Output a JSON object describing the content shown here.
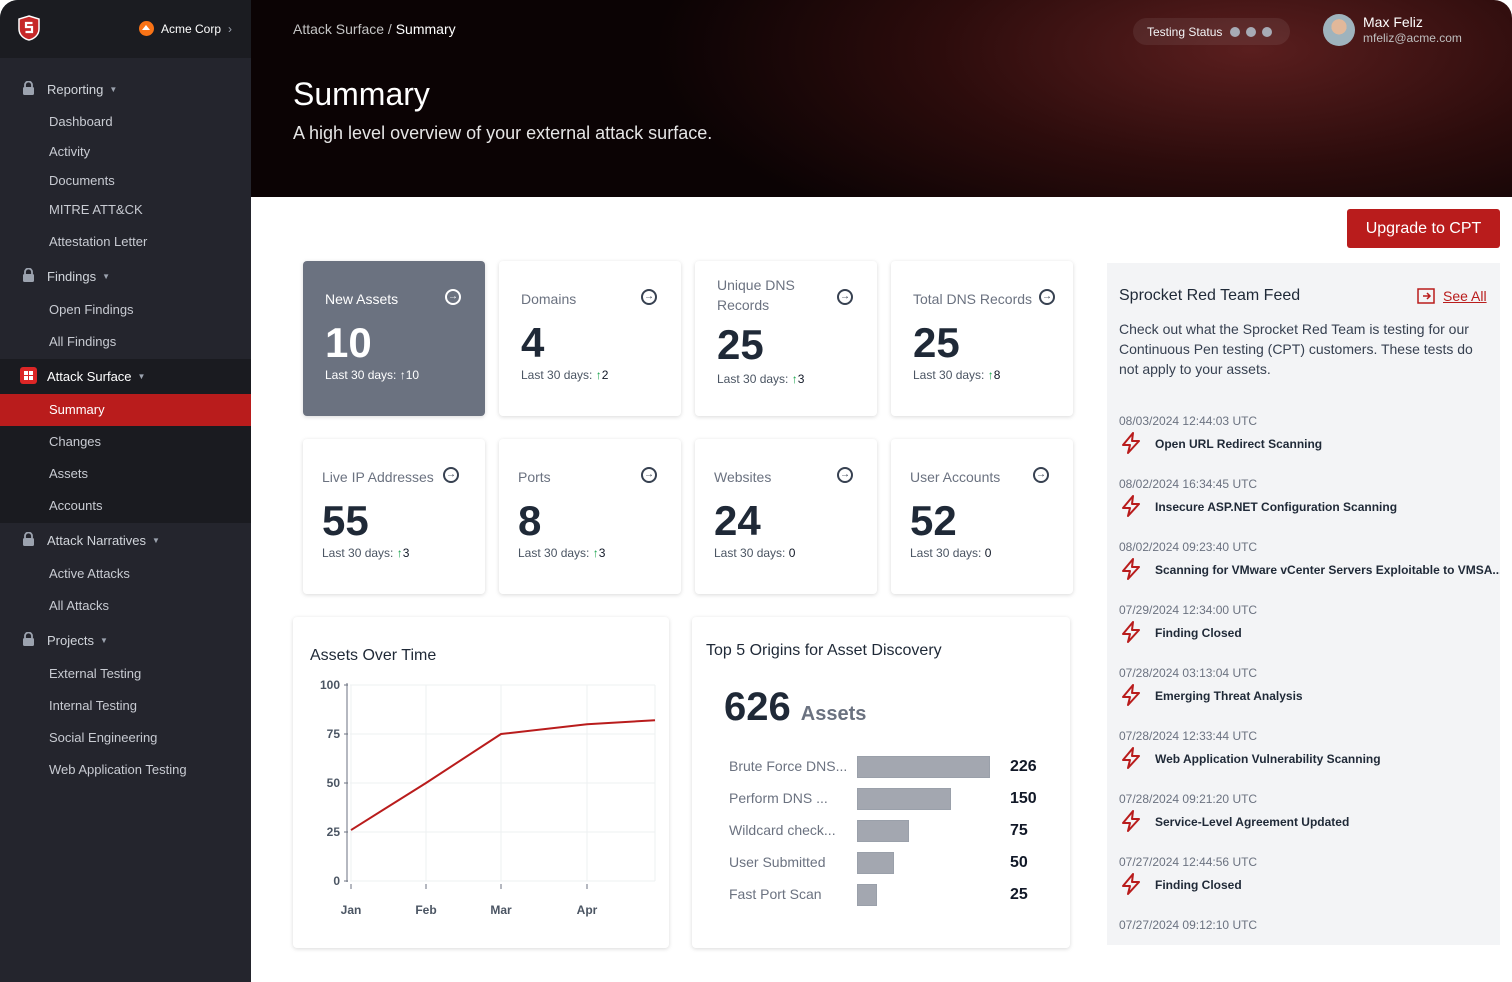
{
  "sidebar": {
    "org": "Acme Corp",
    "groups": [
      {
        "label": "Reporting",
        "items": [
          "Dashboard",
          "Activity",
          "Documents",
          "MITRE ATT&CK",
          "Attestation Letter"
        ]
      },
      {
        "label": "Findings",
        "items": [
          "Open Findings",
          "All Findings"
        ]
      },
      {
        "label": "Attack Surface",
        "items": [
          "Summary",
          "Changes",
          "Assets",
          "Accounts"
        ]
      },
      {
        "label": "Attack Narratives",
        "items": [
          "Active Attacks",
          "All Attacks"
        ]
      },
      {
        "label": "Projects",
        "items": [
          "External Testing",
          "Internal Testing",
          "Social  Engineering",
          "Web Application Testing"
        ]
      }
    ],
    "active_item": "Summary"
  },
  "header": {
    "breadcrumb_parent": "Attack Surface /",
    "breadcrumb_current": "Summary",
    "title": "Summary",
    "subtitle": "A high level overview of your external attack surface.",
    "testing_status": "Testing Status",
    "user_name": "Max Feliz",
    "user_email": "mfeliz@acme.com"
  },
  "upgrade_label": "Upgrade to CPT",
  "last30_label": "Last 30 days:",
  "cards": [
    {
      "title": "New Assets",
      "value": "10",
      "delta": "10",
      "dir": "up"
    },
    {
      "title": "Domains",
      "value": "4",
      "delta": "2",
      "dir": "up"
    },
    {
      "title": "Unique DNS Records",
      "value": "25",
      "delta": "3",
      "dir": "up"
    },
    {
      "title": "Total DNS Records",
      "value": "25",
      "delta": "8",
      "dir": "up"
    },
    {
      "title": "Live IP Addresses",
      "value": "55",
      "delta": "3",
      "dir": "up"
    },
    {
      "title": "Ports",
      "value": "8",
      "delta": "3",
      "dir": "up"
    },
    {
      "title": "Websites",
      "value": "24",
      "delta": "0",
      "dir": "none"
    },
    {
      "title": "User Accounts",
      "value": "52",
      "delta": "0",
      "dir": "none"
    }
  ],
  "chart_data": [
    {
      "type": "line",
      "title": "Assets Over Time",
      "x": [
        "Jan",
        "Feb",
        "Mar",
        "Apr",
        ""
      ],
      "values": [
        26,
        50,
        75,
        80,
        82
      ],
      "y_ticks": [
        "0",
        "25",
        "50",
        "75",
        "100"
      ],
      "ylim": [
        0,
        100
      ],
      "grid": true,
      "color": "#b91c1c"
    },
    {
      "type": "bar",
      "title": "Top 5 Origins for Asset Discovery",
      "total": "626",
      "total_unit": "Assets",
      "categories": [
        "Brute Force DNS...",
        "Perform DNS ...",
        "Wildcard check...",
        "User Submitted",
        "Fast Port Scan"
      ],
      "values": [
        226,
        150,
        75,
        50,
        25
      ],
      "orientation": "horizontal"
    }
  ],
  "feed": {
    "title": "Sprocket Red Team Feed",
    "see_all": "See All",
    "description": "Check out what the Sprocket Red Team is testing for our Continuous Pen testing (CPT) customers. These tests do not apply to your assets.",
    "items": [
      {
        "ts": "08/03/2024 12:44:03 UTC",
        "text": "Open URL Redirect Scanning"
      },
      {
        "ts": "08/02/2024 16:34:45 UTC",
        "text": "Insecure ASP.NET Configuration Scanning"
      },
      {
        "ts": "08/02/2024 09:23:40 UTC",
        "text": "Scanning for VMware vCenter Servers Exploitable to VMSA..."
      },
      {
        "ts": "07/29/2024 12:34:00 UTC",
        "text": "Finding Closed"
      },
      {
        "ts": "07/28/2024 03:13:04 UTC",
        "text": "Emerging Threat Analysis"
      },
      {
        "ts": "07/28/2024 12:33:44 UTC",
        "text": "Web Application Vulnerability Scanning"
      },
      {
        "ts": "07/28/2024 09:21:20 UTC",
        "text": "Service-Level Agreement Updated"
      },
      {
        "ts": "07/27/2024 12:44:56 UTC",
        "text": "Finding Closed"
      },
      {
        "ts": "07/27/2024 09:12:10 UTC",
        "text": ""
      }
    ]
  }
}
